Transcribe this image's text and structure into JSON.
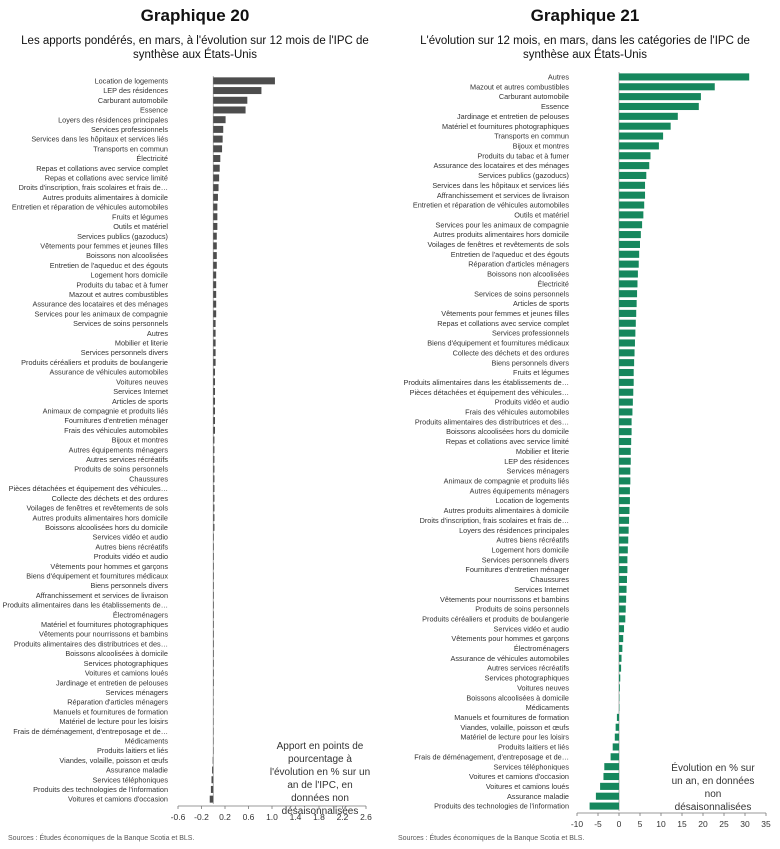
{
  "chart_data": [
    {
      "type": "bar",
      "orientation": "horizontal",
      "figure_label": "Graphique 20",
      "title": "Les apports pondérés, en mars, à l'évolution sur 12 mois de l'IPC de synthèse aux États-Unis",
      "note": "Apport en points de pourcentage à l'évolution en % sur un an de l'IPC, en données non désaisonnalisées",
      "source": "Sources : Études économiques de la Banque Scotia et BLS.",
      "color": "#4d4d4d",
      "xlim": [
        -0.6,
        2.6
      ],
      "xticks": [
        -0.6,
        -0.2,
        0.2,
        0.6,
        1.0,
        1.4,
        1.8,
        2.2,
        2.6
      ],
      "tick_labels": [
        "-0.6",
        "-0.2",
        "0.2",
        "0.6",
        "1.0",
        "1.4",
        "1.8",
        "2.2",
        "2.6"
      ],
      "categories": [
        "Location de logements",
        "LEP des résidences",
        "Carburant automobile",
        "Essence",
        "Loyers des résidences principales",
        "Services professionnels",
        "Services dans les hôpitaux et services liés",
        "Transports en commun",
        "Électricité",
        "Repas et collations avec service complet",
        "Repas et collations avec service limité",
        "Droits d'inscription, frais scolaires et frais de…",
        "Autres produits alimentaires à domicile",
        "Entretien et réparation de véhicules automobiles",
        "Fruits et légumes",
        "Outils et matériel",
        "Services publics (gazoducs)",
        "Vêtements pour femmes et jeunes filles",
        "Boissons non alcoolisées",
        "Entretien de l'aqueduc et des égouts",
        "Logement hors domicile",
        "Produits du tabac et à fumer",
        "Mazout et autres combustibles",
        "Assurance des locataires et des ménages",
        "Services pour les animaux de compagnie",
        "Services de soins personnels",
        "Autres",
        "Mobilier et literie",
        "Services personnels divers",
        "Produits céréaliers et produits de boulangerie",
        "Assurance de véhicules automobiles",
        "Voitures neuves",
        "Services Internet",
        "Articles de sports",
        "Animaux de compagnie et produits liés",
        "Fournitures d'entretien ménager",
        "Frais des véhicules automobiles",
        "Bijoux et montres",
        "Autres équipements ménagers",
        "Autres services récréatifs",
        "Produits de soins personnels",
        "Chaussures",
        "Pièces détachées et équipement des véhicules…",
        "Collecte des déchets et des ordures",
        "Voilages de fenêtres et revêtements de sols",
        "Autres produits alimentaires hors domicile",
        "Boissons alcoolisées hors du domicile",
        "Services vidéo et audio",
        "Autres biens récréatifs",
        "Produits vidéo et audio",
        "Vêtements pour hommes et garçons",
        "Biens d'équipement et fournitures médicaux",
        "Biens personnels divers",
        "Affranchissement et services de livraison",
        "Produits alimentaires dans les établissements de…",
        "Électroménagers",
        "Matériel et fournitures photographiques",
        "Vêtements pour nourrissons et bambins",
        "Produits alimentaires des distributrices et des…",
        "Boissons alcoolisées à domicile",
        "Services photographiques",
        "Voitures et camions loués",
        "Jardinage et entretien de pelouses",
        "Services ménagers",
        "Réparation d'articles ménagers",
        "Manuels et fournitures de formation",
        "Matériel de lecture pour les loisirs",
        "Frais de déménagement, d'entreposage et de…",
        "Médicaments",
        "Produits laitiers et liés",
        "Viandes, volaille, poisson et œufs",
        "Assurance maladie",
        "Services téléphoniques",
        "Produits des technologies de l'information",
        "Voitures et camions d'occasion"
      ],
      "values": [
        1.05,
        0.82,
        0.58,
        0.55,
        0.21,
        0.17,
        0.16,
        0.15,
        0.12,
        0.11,
        0.1,
        0.09,
        0.08,
        0.07,
        0.07,
        0.07,
        0.06,
        0.06,
        0.06,
        0.06,
        0.05,
        0.05,
        0.05,
        0.05,
        0.05,
        0.04,
        0.04,
        0.04,
        0.04,
        0.04,
        0.03,
        0.03,
        0.03,
        0.03,
        0.03,
        0.03,
        0.03,
        0.02,
        0.02,
        0.02,
        0.02,
        0.02,
        0.02,
        0.02,
        0.02,
        0.02,
        0.02,
        0.01,
        0.01,
        0.01,
        0.01,
        0.01,
        0.01,
        0.01,
        0.01,
        0.01,
        0.01,
        0.01,
        0.01,
        0.01,
        0.01,
        0.01,
        0.01,
        0.0,
        0.0,
        0.0,
        0.0,
        0.0,
        0.0,
        0.0,
        -0.01,
        -0.02,
        -0.03,
        -0.04,
        -0.06
      ]
    },
    {
      "type": "bar",
      "orientation": "horizontal",
      "figure_label": "Graphique 21",
      "title": "L'évolution sur 12 mois, en mars, dans les catégories de l'IPC de synthèse aux États-Unis",
      "note": "Évolution en % sur un an, en données non désaisonnalisées",
      "source": "Sources : Études économiques de la Banque Scotia et BLS.",
      "color": "#16875d",
      "xlim": [
        -10,
        35
      ],
      "xticks": [
        -10,
        -5,
        0,
        5,
        10,
        15,
        20,
        25,
        30,
        35
      ],
      "tick_labels": [
        "-10",
        "-5",
        "0",
        "5",
        "10",
        "15",
        "20",
        "25",
        "30",
        "35"
      ],
      "categories": [
        "Autres",
        "Mazout et autres combustibles",
        "Carburant automobile",
        "Essence",
        "Jardinage et entretien de pelouses",
        "Matériel et fournitures photographiques",
        "Transports en commun",
        "Bijoux et montres",
        "Produits du tabac et à fumer",
        "Assurance des locataires et des ménages",
        "Services publics (gazoducs)",
        "Services dans les hôpitaux et services liés",
        "Affranchissement et services de livraison",
        "Entretien et réparation de véhicules automobiles",
        "Outils et matériel",
        "Services pour les animaux de compagnie",
        "Autres produits alimentaires hors domicile",
        "Voilages de fenêtres et revêtements de sols",
        "Entretien de l'aqueduc et des égouts",
        "Réparation d'articles ménagers",
        "Boissons non alcoolisées",
        "Électricité",
        "Services de soins personnels",
        "Articles de sports",
        "Vêtements pour femmes et jeunes filles",
        "Repas et collations avec service complet",
        "Services professionnels",
        "Biens d'équipement et fournitures médicaux",
        "Collecte des déchets et des ordures",
        "Biens personnels divers",
        "Fruits et légumes",
        "Produits alimentaires dans les établissements de…",
        "Pièces détachées et équipement des véhicules…",
        "Produits vidéo et audio",
        "Frais des véhicules automobiles",
        "Produits alimentaires des distributrices et des…",
        "Boissons alcoolisées hors du domicile",
        "Repas et collations avec service limité",
        "Mobilier et literie",
        "LEP des résidences",
        "Services ménagers",
        "Animaux de compagnie et produits liés",
        "Autres équipements ménagers",
        "Location de logements",
        "Autres produits alimentaires à domicile",
        "Droits d'inscription, frais scolaires et frais de…",
        "Loyers des résidences principales",
        "Autres biens récréatifs",
        "Logement hors domicile",
        "Services personnels divers",
        "Fournitures d'entretien ménager",
        "Chaussures",
        "Services Internet",
        "Vêtements pour nourrissons et bambins",
        "Produits de soins personnels",
        "Produits céréaliers et produits de boulangerie",
        "Services vidéo et audio",
        "Vêtements pour hommes et garçons",
        "Électroménagers",
        "Assurance de véhicules automobiles",
        "Autres services récréatifs",
        "Services photographiques",
        "Voitures neuves",
        "Boissons alcoolisées à domicile",
        "Médicaments",
        "Manuels et fournitures de formation",
        "Viandes, volaille, poisson et œufs",
        "Matériel de lecture pour les loisirs",
        "Produits laitiers et liés",
        "Frais de déménagement, d'entreposage et de…",
        "Services téléphoniques",
        "Voitures et camions d'occasion",
        "Voitures et camions loués",
        "Assurance maladie",
        "Produits des technologies de l'information"
      ],
      "values": [
        31.0,
        22.8,
        19.5,
        19.0,
        14.0,
        12.3,
        10.5,
        9.5,
        7.5,
        7.2,
        6.5,
        6.2,
        6.2,
        6.0,
        5.8,
        5.5,
        5.2,
        5.0,
        4.8,
        4.7,
        4.5,
        4.4,
        4.3,
        4.2,
        4.1,
        4.0,
        3.9,
        3.8,
        3.7,
        3.6,
        3.5,
        3.5,
        3.4,
        3.3,
        3.2,
        3.0,
        3.0,
        2.9,
        2.8,
        2.8,
        2.7,
        2.7,
        2.6,
        2.6,
        2.5,
        2.4,
        2.3,
        2.2,
        2.1,
        2.0,
        2.0,
        1.9,
        1.8,
        1.7,
        1.6,
        1.5,
        1.2,
        1.0,
        0.8,
        0.6,
        0.5,
        0.3,
        0.2,
        0.1,
        0.0,
        -0.5,
        -0.8,
        -1.0,
        -1.5,
        -2.0,
        -3.5,
        -3.7,
        -4.5,
        -5.5,
        -7.0
      ]
    }
  ]
}
